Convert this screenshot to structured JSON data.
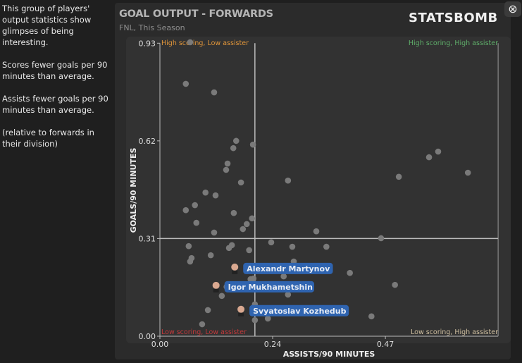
{
  "sidebar": {
    "paragraphs": [
      "This group of players' output statistics show glimpses of being interesting.",
      "Scores fewer goals per 90 minutes than average.",
      "Assists fewer goals per 90 minutes than average.",
      "(relative to forwards in their division)"
    ]
  },
  "header": {
    "title": "GOAL OUTPUT - FORWARDS",
    "subtitle": "FNL, This Season",
    "logo": "STATSBOMB",
    "close_icon": "close-circle-icon"
  },
  "colors": {
    "label_bg": "#2f64b0",
    "point": "#7a7a7a",
    "high_low": "#e0953a",
    "high_high": "#5fae6a",
    "low_low": "#c0393b",
    "low_high": "#cfbfa0"
  },
  "chart_data": {
    "type": "scatter",
    "xlabel": "ASSISTS/90 MINUTES",
    "ylabel": "GOALS/90 MINUTES",
    "xlim": [
      0,
      0.705
    ],
    "ylim": [
      0,
      0.93
    ],
    "xticks": [
      {
        "v": 0,
        "label": "0.00"
      },
      {
        "v": 0.235,
        "label": "0.24"
      },
      {
        "v": 0.47,
        "label": "0.47"
      }
    ],
    "yticks": [
      {
        "v": 0,
        "label": "0.00"
      },
      {
        "v": 0.31,
        "label": "0.31"
      },
      {
        "v": 0.62,
        "label": "0.62"
      },
      {
        "v": 0.93,
        "label": "0.93"
      }
    ],
    "mean_x": 0.198,
    "mean_y": 0.31,
    "quadrants": {
      "tl": "High scoring, Low assister",
      "tr": "High scoring, High assister",
      "bl": "Low scoring, Low assister",
      "br": "Low scoring, High assister"
    },
    "points": [
      [
        0.054,
        0.801
      ],
      [
        0.113,
        0.774
      ],
      [
        0.063,
        0.933
      ],
      [
        0.159,
        0.62
      ],
      [
        0.194,
        0.608
      ],
      [
        0.153,
        0.597
      ],
      [
        0.141,
        0.548
      ],
      [
        0.138,
        0.528
      ],
      [
        0.169,
        0.488
      ],
      [
        0.095,
        0.456
      ],
      [
        0.116,
        0.447
      ],
      [
        0.073,
        0.416
      ],
      [
        0.054,
        0.4
      ],
      [
        0.076,
        0.36
      ],
      [
        0.154,
        0.391
      ],
      [
        0.192,
        0.374
      ],
      [
        0.181,
        0.356
      ],
      [
        0.173,
        0.34
      ],
      [
        0.113,
        0.329
      ],
      [
        0.06,
        0.286
      ],
      [
        0.15,
        0.289
      ],
      [
        0.144,
        0.28
      ],
      [
        0.186,
        0.273
      ],
      [
        0.106,
        0.257
      ],
      [
        0.066,
        0.248
      ],
      [
        0.063,
        0.237
      ],
      [
        0.232,
        0.298
      ],
      [
        0.276,
        0.284
      ],
      [
        0.347,
        0.284
      ],
      [
        0.326,
        0.333
      ],
      [
        0.461,
        0.311
      ],
      [
        0.267,
        0.494
      ],
      [
        0.498,
        0.506
      ],
      [
        0.561,
        0.568
      ],
      [
        0.58,
        0.586
      ],
      [
        0.642,
        0.519
      ],
      [
        0.195,
        0.183
      ],
      [
        0.189,
        0.181
      ],
      [
        0.258,
        0.19
      ],
      [
        0.279,
        0.237
      ],
      [
        0.396,
        0.201
      ],
      [
        0.49,
        0.163
      ],
      [
        0.139,
        0.157
      ],
      [
        0.1,
        0.083
      ],
      [
        0.088,
        0.038
      ],
      [
        0.198,
        0.101
      ],
      [
        0.225,
        0.056
      ],
      [
        0.441,
        0.063
      ],
      [
        0.198,
        0.051
      ],
      [
        0.267,
        0.132
      ],
      [
        0.129,
        0.128
      ]
    ],
    "highlighted": [
      {
        "name": "Alexandr Martynov",
        "x": 0.156,
        "y": 0.215
      },
      {
        "name": "Igor Mukhametshin",
        "x": 0.117,
        "y": 0.157
      },
      {
        "name": "Svyatoslav Kozhedub",
        "x": 0.169,
        "y": 0.081
      }
    ]
  }
}
